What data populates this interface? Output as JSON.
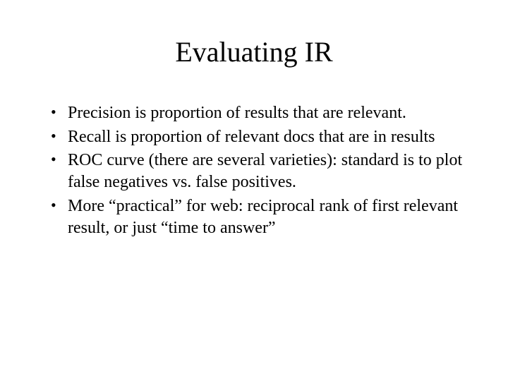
{
  "slide": {
    "title": "Evaluating IR",
    "title_fontsize": 40,
    "body_fontsize": 24,
    "font_family": "Times New Roman",
    "text_color": "#000000",
    "background_color": "#ffffff",
    "bullets": [
      "Precision is proportion of results that are relevant.",
      "Recall is proportion of relevant docs that are in results",
      "ROC curve (there are several varieties): standard is to plot false negatives vs. false positives.",
      "More “practical” for web: reciprocal rank of first relevant result, or just “time to answer”"
    ]
  }
}
